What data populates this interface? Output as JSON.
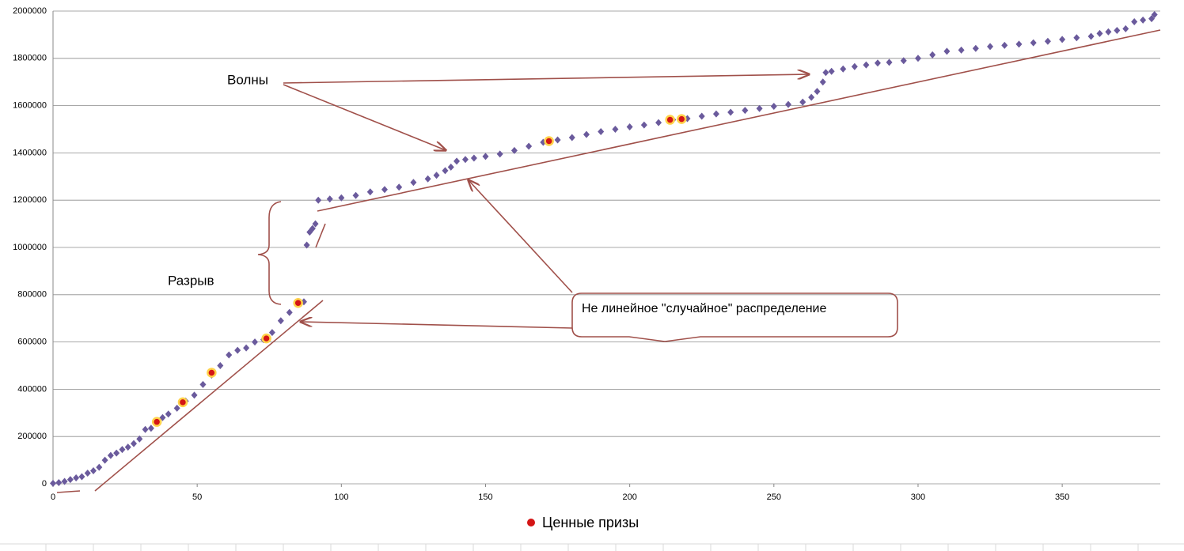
{
  "chart_data": {
    "type": "scatter",
    "xlim": [
      0,
      384
    ],
    "xticks": [
      0,
      50,
      100,
      150,
      200,
      250,
      300,
      350
    ],
    "ylim": [
      0,
      2000000
    ],
    "yticks": [
      0,
      200000,
      400000,
      600000,
      800000,
      1000000,
      1200000,
      1400000,
      1600000,
      1800000,
      2000000
    ],
    "grid": true,
    "legend": "bottom",
    "series": [
      {
        "color": "#6a5a9c",
        "marker": "diamond",
        "x": [
          0,
          2,
          4,
          6,
          8,
          10,
          12,
          14,
          16,
          18,
          20,
          22,
          24,
          26,
          28,
          30,
          32,
          34,
          36,
          38,
          40,
          43,
          46,
          49,
          52,
          55,
          58,
          61,
          64,
          67,
          70,
          73,
          76,
          79,
          82,
          85,
          87,
          88,
          89,
          90,
          91,
          92,
          96,
          100,
          105,
          110,
          115,
          120,
          125,
          130,
          133,
          136,
          138,
          140,
          143,
          146,
          150,
          155,
          160,
          165,
          170,
          175,
          180,
          185,
          190,
          195,
          200,
          205,
          210,
          215,
          220,
          225,
          230,
          235,
          240,
          245,
          250,
          255,
          260,
          263,
          265,
          267,
          268,
          270,
          274,
          278,
          282,
          286,
          290,
          295,
          300,
          305,
          310,
          315,
          320,
          325,
          330,
          335,
          340,
          345,
          350,
          355,
          360,
          363,
          366,
          369,
          372,
          375,
          378,
          381,
          382
        ],
        "values": [
          2000,
          5000,
          10000,
          18000,
          25000,
          30000,
          45000,
          55000,
          70000,
          100000,
          120000,
          130000,
          145000,
          155000,
          170000,
          190000,
          230000,
          235000,
          262000,
          280000,
          295000,
          320000,
          350000,
          375000,
          420000,
          460000,
          500000,
          545000,
          565000,
          575000,
          600000,
          610000,
          640000,
          690000,
          725000,
          760000,
          770000,
          1010000,
          1065000,
          1080000,
          1100000,
          1200000,
          1205000,
          1210000,
          1220000,
          1235000,
          1245000,
          1255000,
          1275000,
          1290000,
          1305000,
          1325000,
          1340000,
          1365000,
          1372000,
          1378000,
          1385000,
          1395000,
          1410000,
          1428000,
          1445000,
          1455000,
          1465000,
          1478000,
          1490000,
          1500000,
          1510000,
          1518000,
          1528000,
          1540000,
          1545000,
          1555000,
          1565000,
          1572000,
          1580000,
          1588000,
          1597000,
          1605000,
          1615000,
          1635000,
          1660000,
          1700000,
          1740000,
          1745000,
          1755000,
          1765000,
          1772000,
          1780000,
          1783000,
          1790000,
          1800000,
          1815000,
          1830000,
          1835000,
          1842000,
          1850000,
          1855000,
          1860000,
          1866000,
          1872000,
          1880000,
          1887000,
          1893000,
          1905000,
          1912000,
          1918000,
          1925000,
          1955000,
          1962000,
          1968000,
          1985000
        ]
      },
      {
        "name": "Ценные призы",
        "color": "#d41515",
        "marker": "circle",
        "x": [
          36,
          45,
          55,
          74,
          85,
          172,
          214,
          218
        ],
        "values": [
          262000,
          345000,
          470000,
          615000,
          765000,
          1450000,
          1540000,
          1543000
        ]
      }
    ],
    "annotations": [
      "Волны",
      "Разрыв",
      "Не линейное \"случайное\" распределение"
    ]
  }
}
